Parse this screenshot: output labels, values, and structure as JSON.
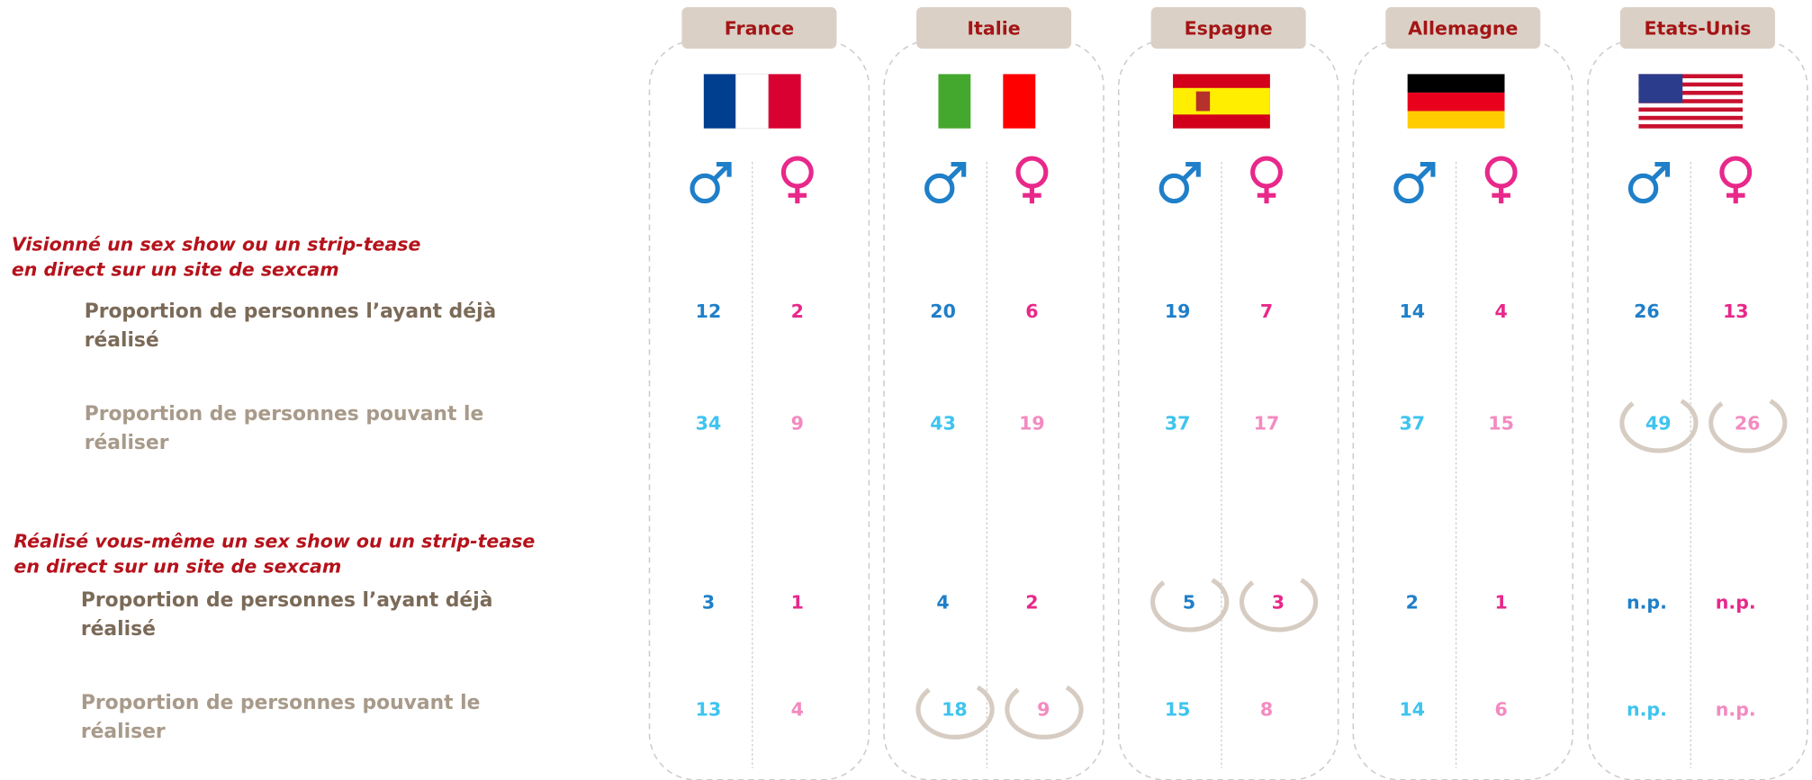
{
  "countries": [
    "France",
    "Italie",
    "Espagne",
    "Allemagne",
    "Etats-Unis"
  ],
  "sections": [
    {
      "title_lines": [
        "Visionné un sex show ou un strip-tease",
        "en direct sur un site de sexcam"
      ],
      "rows": [
        {
          "label_lines": [
            "Proportion de personnes l’ayant déjà",
            "réalisé"
          ],
          "values": [
            [
              12,
              2
            ],
            [
              20,
              6
            ],
            [
              19,
              7
            ],
            [
              14,
              4
            ],
            [
              26,
              13
            ]
          ],
          "circled": [],
          "colors": [
            "#1f7fc9",
            "#e8288a"
          ]
        },
        {
          "label_lines": [
            "Proportion de personnes pouvant le",
            "réaliser"
          ],
          "values": [
            [
              34,
              9
            ],
            [
              43,
              19
            ],
            [
              37,
              17
            ],
            [
              37,
              15
            ],
            [
              49,
              26
            ]
          ],
          "circled": [
            4
          ],
          "colors": [
            "#3ec4ef",
            "#f38ac0"
          ]
        }
      ]
    },
    {
      "title_lines": [
        "Réalisé vous-même un sex show ou un strip-tease",
        "en direct sur un site de sexcam"
      ],
      "rows": [
        {
          "label_lines": [
            "Proportion de personnes l’ayant déjà",
            "réalisé"
          ],
          "values": [
            [
              3,
              1
            ],
            [
              4,
              2
            ],
            [
              5,
              3
            ],
            [
              2,
              1
            ],
            [
              "n.p.",
              "n.p."
            ]
          ],
          "circled": [
            2
          ],
          "colors": [
            "#1f7fc9",
            "#e8288a"
          ]
        },
        {
          "label_lines": [
            "Proportion de personnes pouvant le",
            "réaliser"
          ],
          "values": [
            [
              13,
              4
            ],
            [
              18,
              9
            ],
            [
              15,
              8
            ],
            [
              14,
              6
            ],
            [
              "n.p.",
              "n.p."
            ]
          ],
          "circled": [
            1
          ],
          "colors": [
            "#3ec4ef",
            "#f38ac0"
          ]
        }
      ]
    }
  ]
}
